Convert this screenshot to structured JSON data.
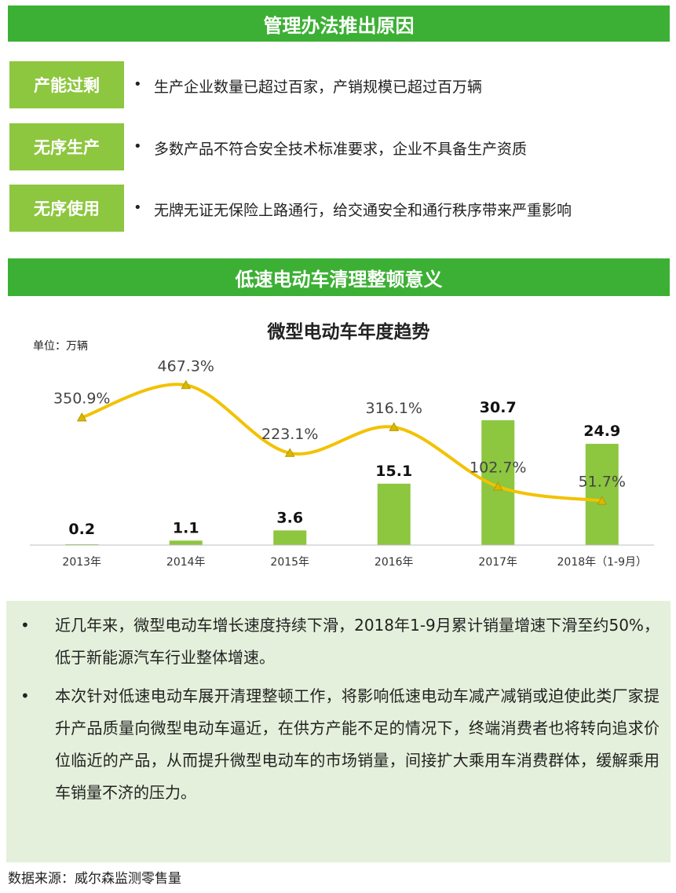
{
  "section1": {
    "title": "管理办法推出原因"
  },
  "reasons": [
    {
      "tag": "产能过剩",
      "bullet": "•",
      "text": "生产企业数量已超过百家，产销规模已超过百万辆"
    },
    {
      "tag": "无序生产",
      "bullet": "•",
      "text": "多数产品不符合安全技术标准要求，企业不具备生产资质"
    },
    {
      "tag": "无序使用",
      "bullet": "•",
      "text": "无牌无证无保险上路通行，给交通安全和通行秩序带来严重影响"
    }
  ],
  "section2": {
    "title": "低速电动车清理整顿意义"
  },
  "chart_data": {
    "type": "bar",
    "title": "微型电动车年度趋势",
    "unit_label": "单位：万辆",
    "categories": [
      "2013年",
      "2014年",
      "2015年",
      "2016年",
      "2017年",
      "2018年（1-9月）"
    ],
    "values": [
      0.2,
      1.1,
      3.6,
      15.1,
      30.7,
      24.9
    ],
    "value_labels": [
      "0.2",
      "1.1",
      "3.6",
      "15.1",
      "30.7",
      "24.9"
    ],
    "growth": [
      350.9,
      467.3,
      223.1,
      316.1,
      102.7,
      51.7
    ],
    "growth_labels": [
      "350.9%",
      "467.3%",
      "223.1%",
      "316.1%",
      "102.7%",
      "51.7%"
    ],
    "ylim": [
      0,
      34
    ],
    "growth_ylim": [
      0,
      550
    ],
    "grid": false,
    "colors": {
      "bars": "#8dc63f",
      "line": "#f2c200",
      "marker": "#d9b800",
      "axis": "#bfbfbf"
    }
  },
  "notes": [
    {
      "bullet": "•",
      "text": "近几年来，微型电动车增长速度持续下滑，2018年1-9月累计销量增速下滑至约50%，低于新能源汽车行业整体增速。"
    },
    {
      "bullet": "•",
      "text": "本次针对低速电动车展开清理整顿工作，将影响低速电动车减产减销或迫使此类厂家提升产品质量向微型电动车逼近，在供方产能不足的情况下，终端消费者也将转向追求价位临近的产品，从而提升微型电动车的市场销量，间接扩大乘用车消费群体，缓解乘用车销量不济的压力。"
    }
  ],
  "source": "数据来源：威尔森监测零售量",
  "colors": {
    "banner": "#3cb034",
    "tag": "#8dc63f",
    "panel": "#e4f0db"
  }
}
